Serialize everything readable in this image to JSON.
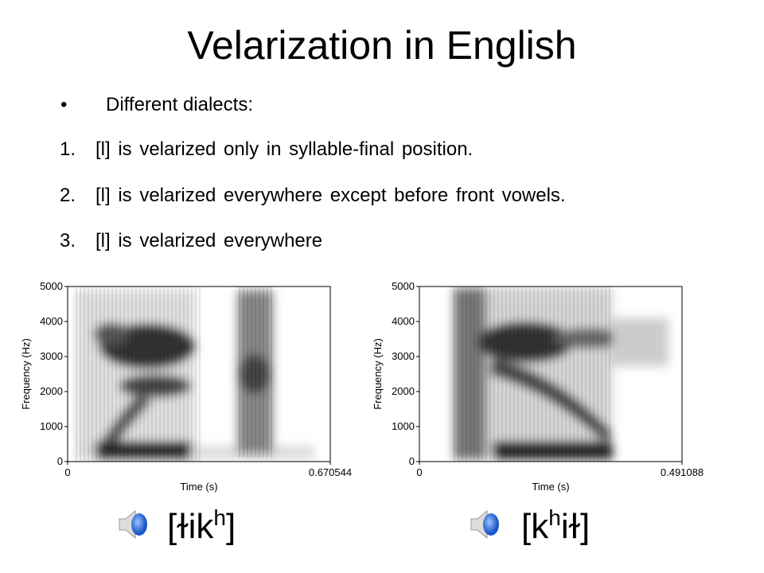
{
  "title": "Velarization in English",
  "bullet": "Different dialects:",
  "items": [
    {
      "number": "1.",
      "text": "[l] is velarized only in syllable-final position."
    },
    {
      "number": "2.",
      "text": "[l] is velarized everywhere except before front vowels."
    },
    {
      "number": "3.",
      "text": "[l] is velarized everywhere"
    }
  ],
  "spectrograms": [
    {
      "yticks": [
        "0",
        "1000",
        "2000",
        "3000",
        "4000",
        "5000"
      ],
      "ylabel": "Frequency (Hz)",
      "xticks": [
        "0",
        "0.670544"
      ],
      "xlabel": "Time (s)",
      "transcription": {
        "base": "[ɫik",
        "sup": "h",
        "end": "]"
      }
    },
    {
      "yticks": [
        "0",
        "1000",
        "2000",
        "3000",
        "4000",
        "5000"
      ],
      "ylabel": "Frequency (Hz)",
      "xticks": [
        "0",
        "0.491088"
      ],
      "xlabel": "Time (s)",
      "transcription": {
        "base": "[k",
        "sup": "h",
        "end": "iɫ]"
      }
    }
  ]
}
